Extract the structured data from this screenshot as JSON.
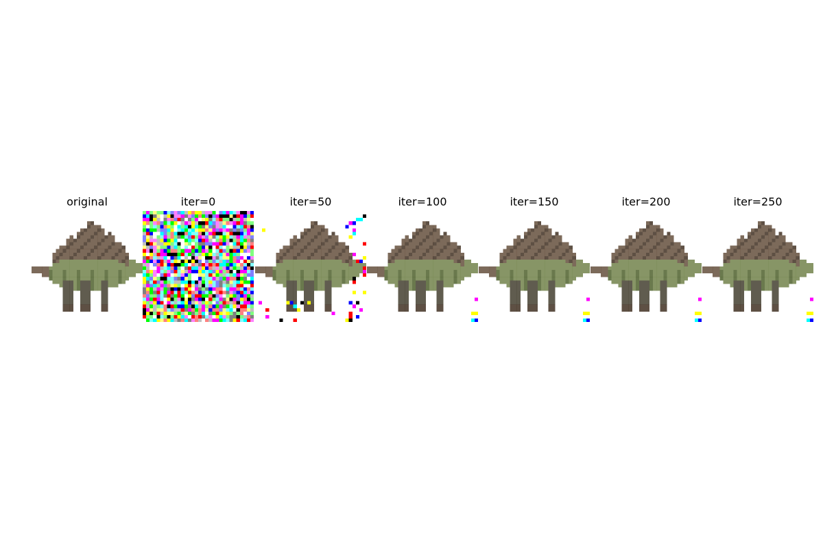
{
  "figure": {
    "panels": [
      {
        "title": "original",
        "stage": "original"
      },
      {
        "title": "iter=0",
        "stage": "noise"
      },
      {
        "title": "iter=50",
        "stage": "early"
      },
      {
        "title": "iter=100",
        "stage": "near"
      },
      {
        "title": "iter=150",
        "stage": "near"
      },
      {
        "title": "iter=200",
        "stage": "near"
      },
      {
        "title": "iter=250",
        "stage": "near"
      }
    ],
    "subject": "stegosaurus",
    "noise_colors": [
      "#ff0000",
      "#00ff00",
      "#0000ff",
      "#ffff00",
      "#ff00ff",
      "#00ffff",
      "#000000",
      "#ffffff",
      "#808080",
      "#ff8080",
      "#80ff80",
      "#8080ff",
      "#c0c0c0",
      "#ff80ff",
      "#80ffff",
      "#ffff80"
    ],
    "palette": {
      "plates": "#6e5a48",
      "plates_dark": "#4d3d30",
      "body": "#7a8a55",
      "body_dark": "#5a6a3a",
      "leg": "#4f4a3c",
      "background": "#ffffff"
    }
  }
}
